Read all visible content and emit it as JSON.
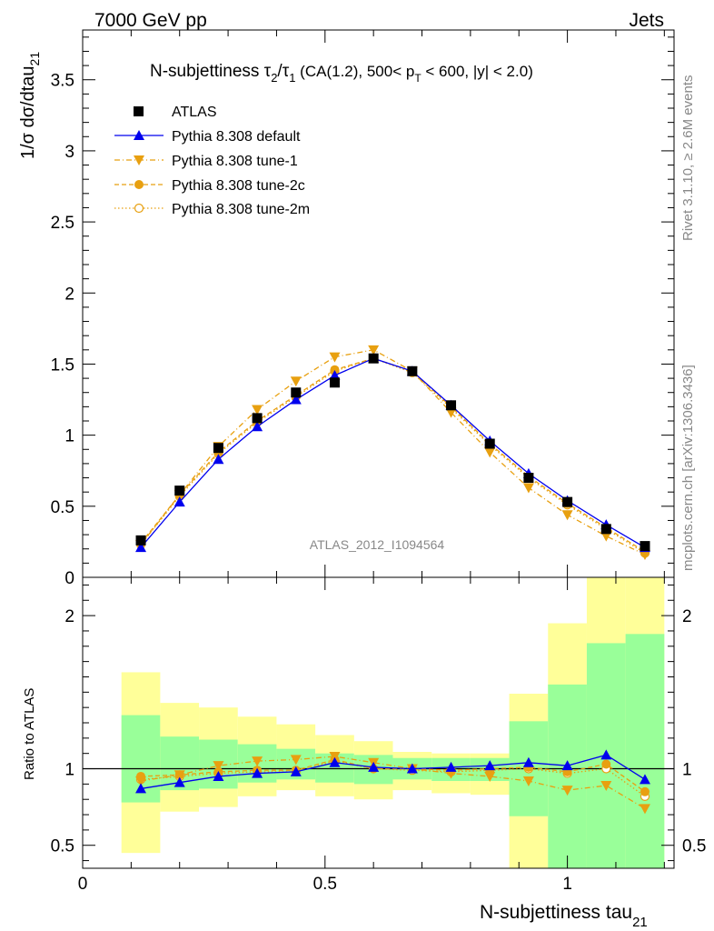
{
  "header": {
    "energy_label": "7000 GeV pp",
    "category_label": "Jets",
    "rivet_label": "Rivet 3.1.10, ≥ 2.6M events",
    "mcplots_label": "mcplots.cern.ch [arXiv:1306.3436]",
    "analysis_id": "ATLAS_2012_I1094564"
  },
  "chart_data": [
    {
      "type": "line",
      "title": {
        "prefix": "N-subjettiness ",
        "tau": "τ",
        "sub2": "2",
        "slash": "/",
        "sub1": "1",
        "cuts_a": " (CA(1.2), 500< p",
        "cuts_sub": "T",
        "cuts_b": " < 600, |y| < 2.0)"
      },
      "ylabel": {
        "main": "1/σ dσ/dtau",
        "sub": "21"
      },
      "xlabel": {
        "main": "N-subjettiness tau",
        "sub": "21"
      },
      "xlim": [
        0,
        1.22
      ],
      "ylim": [
        0,
        3.85
      ],
      "yticks": [
        0,
        0.5,
        1,
        1.5,
        2,
        2.5,
        3,
        3.5
      ],
      "ytick_labels": [
        "0",
        "0.5",
        "1",
        "1.5",
        "2",
        "2.5",
        "3",
        "3.5"
      ],
      "xticks": [
        0,
        0.5,
        1
      ],
      "xtick_labels": [
        "0",
        "0.5",
        "1"
      ],
      "legend_position": "top-left",
      "x": [
        0.12,
        0.2,
        0.28,
        0.36,
        0.44,
        0.52,
        0.6,
        0.68,
        0.76,
        0.84,
        0.92,
        1.0,
        1.08,
        1.16
      ],
      "bin_edges": [
        0.08,
        0.16,
        0.24,
        0.32,
        0.4,
        0.48,
        0.56,
        0.64,
        0.72,
        0.8,
        0.88,
        0.96,
        1.04,
        1.12,
        1.2
      ],
      "series": [
        {
          "name": "ATLAS",
          "color": "#000000",
          "marker": "square",
          "line": "none",
          "values": [
            0.26,
            0.61,
            0.91,
            1.12,
            1.3,
            1.37,
            1.54,
            1.45,
            1.21,
            0.94,
            0.7,
            0.53,
            0.34,
            0.22
          ]
        },
        {
          "name": "Pythia 8.308 default",
          "color": "#0000ee",
          "marker": "triangle-up",
          "line": "solid",
          "values": [
            0.21,
            0.53,
            0.83,
            1.06,
            1.25,
            1.42,
            1.54,
            1.45,
            1.21,
            0.96,
            0.73,
            0.54,
            0.37,
            0.21
          ]
        },
        {
          "name": "Pythia 8.308 tune-1",
          "color": "#e8a010",
          "marker": "triangle-down",
          "line": "dashdot",
          "values": [
            0.23,
            0.58,
            0.92,
            1.18,
            1.38,
            1.55,
            1.6,
            1.45,
            1.16,
            0.88,
            0.63,
            0.44,
            0.29,
            0.16
          ]
        },
        {
          "name": "Pythia 8.308 tune-2c",
          "color": "#e8a010",
          "marker": "circle",
          "line": "dashed",
          "values": [
            0.24,
            0.58,
            0.88,
            1.1,
            1.28,
            1.46,
            1.54,
            1.45,
            1.2,
            0.94,
            0.71,
            0.52,
            0.35,
            0.18
          ]
        },
        {
          "name": "Pythia 8.308 tune-2m",
          "color": "#e8a010",
          "marker": "circle-open",
          "line": "dotted",
          "values": [
            0.23,
            0.57,
            0.87,
            1.09,
            1.27,
            1.45,
            1.54,
            1.44,
            1.19,
            0.93,
            0.7,
            0.51,
            0.34,
            0.17
          ]
        }
      ]
    },
    {
      "type": "line",
      "title": "",
      "ylabel": {
        "main": "Ratio to ATLAS",
        "sub": ""
      },
      "ylim": [
        0.35,
        2.25
      ],
      "yticks": [
        0.5,
        1,
        2
      ],
      "ytick_labels": [
        "0.5",
        "1",
        "2"
      ],
      "xlim": [
        0,
        1.22
      ],
      "reference_line": 1.0,
      "bands": {
        "uncertainty_outer_color": "#ffff99",
        "uncertainty_inner_color": "#99ff99",
        "outer_lo": [
          0.45,
          0.72,
          0.75,
          0.82,
          0.86,
          0.82,
          0.8,
          0.86,
          0.84,
          0.83,
          0.35,
          0.35,
          0.35,
          0.35
        ],
        "outer_hi": [
          1.63,
          1.43,
          1.4,
          1.34,
          1.29,
          1.22,
          1.18,
          1.11,
          1.1,
          1.1,
          1.49,
          1.95,
          2.25,
          2.25
        ],
        "inner_lo": [
          0.78,
          0.86,
          0.87,
          0.91,
          0.93,
          0.91,
          0.9,
          0.93,
          0.92,
          0.92,
          0.69,
          0.35,
          0.35,
          0.35
        ],
        "inner_hi": [
          1.35,
          1.21,
          1.19,
          1.16,
          1.13,
          1.1,
          1.09,
          1.07,
          1.07,
          1.07,
          1.31,
          1.55,
          1.82,
          1.88
        ]
      },
      "series": [
        {
          "name": "Pythia 8.308 default",
          "color": "#0000ee",
          "marker": "triangle-up",
          "line": "solid",
          "values": [
            0.87,
            0.91,
            0.95,
            0.97,
            0.98,
            1.04,
            1.01,
            1.0,
            1.01,
            1.02,
            1.04,
            1.02,
            1.09,
            0.93
          ]
        },
        {
          "name": "Pythia 8.308 tune-1",
          "color": "#e8a010",
          "marker": "triangle-down",
          "line": "dashdot",
          "values": [
            0.92,
            0.96,
            1.02,
            1.05,
            1.06,
            1.08,
            1.04,
            1.0,
            0.97,
            0.95,
            0.92,
            0.86,
            0.89,
            0.74
          ]
        },
        {
          "name": "Pythia 8.308 tune-2c",
          "color": "#e8a010",
          "marker": "circle",
          "line": "dashed",
          "values": [
            0.95,
            0.96,
            0.98,
            0.99,
            0.99,
            1.06,
            1.0,
            1.0,
            0.99,
            1.0,
            1.01,
            0.98,
            1.03,
            0.85
          ]
        },
        {
          "name": "Pythia 8.308 tune-2m",
          "color": "#e8a010",
          "marker": "circle-open",
          "line": "dotted",
          "values": [
            0.93,
            0.95,
            0.97,
            0.98,
            0.98,
            1.05,
            1.0,
            0.99,
            0.98,
            0.99,
            1.0,
            0.97,
            1.0,
            0.82
          ]
        }
      ]
    }
  ]
}
